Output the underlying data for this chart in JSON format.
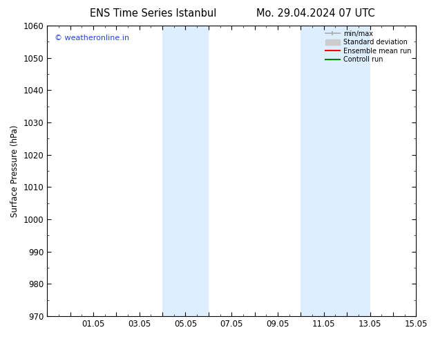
{
  "title_left": "ENS Time Series Istanbul",
  "title_right": "Mo. 29.04.2024 07 UTC",
  "ylabel": "Surface Pressure (hPa)",
  "ylim": [
    970,
    1060
  ],
  "yticks": [
    970,
    980,
    990,
    1000,
    1010,
    1020,
    1030,
    1040,
    1050,
    1060
  ],
  "xlim": [
    0.0,
    16.0
  ],
  "xtick_positions": [
    0,
    2,
    4,
    6,
    8,
    10,
    12,
    14,
    16
  ],
  "xtick_labels": [
    "",
    "01.05",
    "03.05",
    "05.05",
    "07.05",
    "09.05",
    "11.05",
    "13.05",
    "15.05"
  ],
  "shaded_bands": [
    {
      "x_start": 5.0,
      "x_end": 7.0
    },
    {
      "x_start": 11.0,
      "x_end": 14.0
    }
  ],
  "shaded_color": "#ddeeff",
  "watermark_text": "© weatheronline.in",
  "watermark_color": "#2244cc",
  "legend_entries": [
    {
      "label": "min/max",
      "type": "minmax",
      "color": "#aaaaaa"
    },
    {
      "label": "Standard deviation",
      "type": "patch",
      "color": "#cccccc"
    },
    {
      "label": "Ensemble mean run",
      "type": "line",
      "color": "red"
    },
    {
      "label": "Controll run",
      "type": "line",
      "color": "green"
    }
  ],
  "background_color": "#ffffff",
  "plot_bg_color": "#ffffff",
  "tick_color": "#000000",
  "spine_color": "#000000",
  "font_size": 8.5,
  "title_font_size": 10.5
}
